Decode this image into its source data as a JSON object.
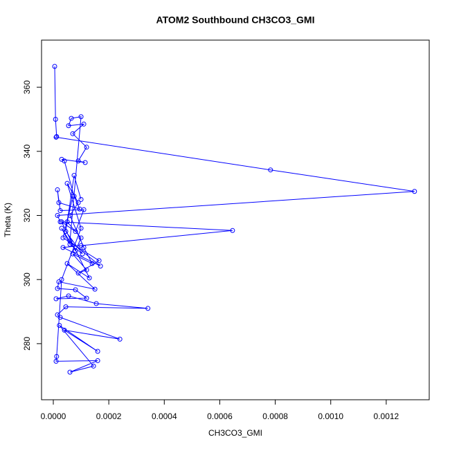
{
  "chart_data": {
    "type": "line",
    "title": "ATOM2 Southbound CH3CO3_GMI",
    "xlabel": "CH3CO3_GMI",
    "ylabel": "Theta (K)",
    "color": "#0000ff",
    "x": [
      5e-06,
      8e-06,
      1.2e-05,
      1e-05,
      0.000783,
      0.001302,
      1.5e-05,
      2.5e-05,
      0.000646,
      0.0001,
      3.5e-05,
      0.00017,
      6e-05,
      0.0001,
      6.5e-05,
      5.5e-05,
      0.00011,
      7e-05,
      0.00012,
      9e-05,
      0.000115,
      3e-05,
      4e-05,
      7.5e-05,
      9.5e-05,
      2e-05,
      1.5e-05,
      2.5e-05,
      0.00011,
      8e-05,
      3e-05,
      0.00013,
      5e-05,
      0.00015,
      2e-05,
      1.5e-05,
      8e-05,
      0.00012,
      1e-05,
      5.5e-05,
      0.000155,
      0.000341,
      4.5e-05,
      1.5e-05,
      2.5e-05,
      0.00024,
      4e-05,
      0.00016,
      2.2e-05,
      0.000145,
      6e-05,
      0.00016,
      1e-05,
      1.2e-05,
      3e-05,
      0.0001,
      5e-05,
      9e-05,
      6e-05,
      0.00011,
      0.00014,
      7e-05,
      0.00012,
      9e-05,
      0.000165,
      3.5e-05,
      7e-05,
      5e-05,
      0.0001,
      8e-05,
      3e-05,
      6e-05,
      0.000105,
      4.5e-05,
      7.5e-05,
      0.0001
    ],
    "values": [
      366.5,
      350.0,
      344.6,
      344.4,
      334.2,
      327.5,
      320.0,
      318,
      315.3,
      310.6,
      310,
      304.2,
      312,
      350.8,
      350.3,
      348,
      348.5,
      345.5,
      341.3,
      337,
      336.5,
      337.5,
      337,
      326,
      322,
      324,
      328,
      321.5,
      321.8,
      315,
      318,
      300.5,
      305,
      297,
      299.3,
      297.2,
      296.8,
      294.2,
      294.0,
      294.9,
      292.5,
      291.0,
      291.5,
      289.0,
      288.2,
      281.4,
      284.2,
      277.6,
      285.7,
      273.0,
      271.1,
      274.7,
      274.5,
      276,
      300,
      316,
      330,
      324,
      320,
      310,
      305,
      308,
      303,
      302,
      305.9,
      313,
      326,
      318,
      313,
      309,
      316,
      311,
      308,
      315,
      332.5,
      325
    ],
    "xlim": [
      -4.24e-05,
      0.001355
    ],
    "ylim": [
      262.5,
      374.7
    ],
    "xticks": [
      {
        "value": 0,
        "label": "0.0000"
      },
      {
        "value": 0.0002,
        "label": "0.0002"
      },
      {
        "value": 0.0004,
        "label": "0.0004"
      },
      {
        "value": 0.0006,
        "label": "0.0006"
      },
      {
        "value": 0.0008,
        "label": "0.0008"
      },
      {
        "value": 0.001,
        "label": "0.0010"
      },
      {
        "value": 0.0012,
        "label": "0.0012"
      }
    ],
    "yticks": [
      280,
      300,
      320,
      340,
      360
    ]
  }
}
